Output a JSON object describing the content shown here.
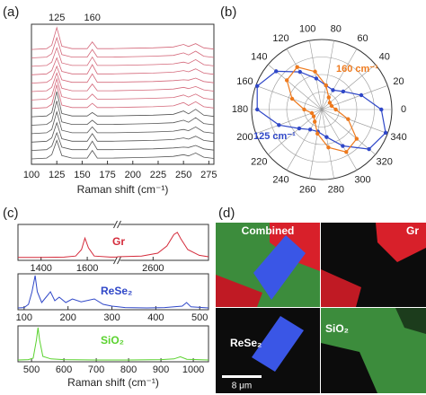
{
  "chart_data": [
    {
      "type": "spectra",
      "panel": "(a)",
      "xlabel": "Raman shift (cm⁻¹)",
      "x": [
        100,
        115,
        120,
        125,
        130,
        140,
        155,
        160,
        165,
        180,
        200,
        220,
        240,
        250,
        255,
        262,
        270,
        280
      ],
      "xlim": [
        100,
        280
      ],
      "xticks": [
        100,
        125,
        150,
        175,
        200,
        225,
        250,
        275
      ],
      "annotations": [
        {
          "text": "125",
          "x": 125
        },
        {
          "text": "160",
          "x": 160
        }
      ],
      "series": [
        {
          "color": "#d4687a",
          "values": [
            0,
            0.1,
            0.5,
            2.6,
            0.4,
            0.1,
            0.1,
            0.9,
            0.1,
            0.1,
            0.15,
            0.2,
            0.3,
            0.6,
            0.35,
            0.7,
            0.2,
            0.05
          ]
        },
        {
          "color": "#d4687a",
          "values": [
            0,
            0.1,
            0.5,
            2.4,
            0.4,
            0.1,
            0.1,
            1.0,
            0.1,
            0.1,
            0.15,
            0.2,
            0.3,
            0.6,
            0.35,
            0.8,
            0.2,
            0.05
          ]
        },
        {
          "color": "#d4687a",
          "values": [
            0,
            0.1,
            0.5,
            2.2,
            0.4,
            0.1,
            0.1,
            1.1,
            0.1,
            0.1,
            0.15,
            0.2,
            0.3,
            0.5,
            0.35,
            0.8,
            0.2,
            0.05
          ]
        },
        {
          "color": "#d4687a",
          "values": [
            0,
            0.1,
            0.5,
            2.0,
            0.4,
            0.1,
            0.1,
            1.2,
            0.1,
            0.1,
            0.15,
            0.2,
            0.3,
            0.5,
            0.35,
            0.7,
            0.2,
            0.05
          ]
        },
        {
          "color": "#d4687a",
          "values": [
            0,
            0.1,
            0.5,
            2.0,
            0.4,
            0.1,
            0.1,
            1.1,
            0.1,
            0.1,
            0.15,
            0.2,
            0.3,
            0.4,
            0.35,
            0.6,
            0.2,
            0.05
          ]
        },
        {
          "color": "#d4687a",
          "values": [
            0,
            0.1,
            0.5,
            2.2,
            0.4,
            0.1,
            0.1,
            0.9,
            0.1,
            0.1,
            0.15,
            0.2,
            0.3,
            0.5,
            0.35,
            0.6,
            0.2,
            0.05
          ]
        },
        {
          "color": "#d4687a",
          "values": [
            0,
            0.1,
            0.5,
            2.5,
            0.4,
            0.1,
            0.1,
            0.7,
            0.1,
            0.1,
            0.15,
            0.2,
            0.3,
            0.6,
            0.35,
            0.7,
            0.2,
            0.05
          ]
        },
        {
          "color": "#d4687a",
          "values": [
            0,
            0.1,
            0.5,
            2.8,
            0.4,
            0.1,
            0.1,
            0.6,
            0.1,
            0.1,
            0.15,
            0.2,
            0.3,
            0.7,
            0.35,
            0.8,
            0.2,
            0.05
          ]
        },
        {
          "color": "#555555",
          "values": [
            0,
            0.1,
            0.5,
            3.0,
            0.4,
            0.1,
            0.1,
            0.5,
            0.1,
            0.1,
            0.15,
            0.2,
            0.3,
            0.7,
            0.35,
            0.9,
            0.2,
            0.05
          ]
        },
        {
          "color": "#555555",
          "values": [
            0,
            0.1,
            0.5,
            2.9,
            0.4,
            0.1,
            0.1,
            0.6,
            0.1,
            0.1,
            0.15,
            0.2,
            0.3,
            0.6,
            0.35,
            0.9,
            0.2,
            0.05
          ]
        },
        {
          "color": "#555555",
          "values": [
            0,
            0.1,
            0.5,
            2.6,
            0.4,
            0.1,
            0.1,
            0.8,
            0.1,
            0.1,
            0.15,
            0.2,
            0.3,
            0.5,
            0.35,
            0.8,
            0.2,
            0.05
          ]
        },
        {
          "color": "#555555",
          "values": [
            0,
            0.1,
            0.5,
            2.3,
            0.4,
            0.1,
            0.1,
            1.0,
            0.1,
            0.1,
            0.15,
            0.2,
            0.3,
            0.5,
            0.35,
            0.7,
            0.2,
            0.05
          ]
        },
        {
          "color": "#555555",
          "values": [
            0,
            0.1,
            0.5,
            2.1,
            0.4,
            0.1,
            0.1,
            1.1,
            0.1,
            0.1,
            0.15,
            0.2,
            0.3,
            0.4,
            0.35,
            0.6,
            0.2,
            0.05
          ]
        },
        {
          "color": "#555555",
          "values": [
            0,
            0.1,
            0.5,
            2.2,
            0.4,
            0.1,
            0.1,
            1.0,
            0.1,
            0.1,
            0.15,
            0.2,
            0.3,
            0.5,
            0.35,
            0.7,
            0.2,
            0.05
          ]
        }
      ]
    },
    {
      "type": "polar",
      "panel": "(b)",
      "rlim": [
        0,
        1
      ],
      "theta": [
        0,
        20,
        40,
        60,
        80,
        100,
        120,
        140,
        160,
        180,
        200,
        220,
        240,
        260,
        280,
        300,
        320,
        340
      ],
      "thetaticks": [
        0,
        20,
        40,
        60,
        80,
        100,
        120,
        140,
        160,
        180,
        200,
        220,
        240,
        260,
        280,
        300,
        320,
        340
      ],
      "series": [
        {
          "name": "125 cm⁻¹",
          "color": "#2f47c8",
          "values": [
            0.85,
            0.6,
            0.4,
            0.32,
            0.35,
            0.45,
            0.62,
            0.85,
            0.98,
            0.92,
            0.65,
            0.42,
            0.33,
            0.32,
            0.4,
            0.6,
            0.88,
            0.97
          ]
        },
        {
          "name": "160 cm⁻¹",
          "color": "#ee7a1e",
          "values": [
            0.2,
            0.15,
            0.15,
            0.2,
            0.35,
            0.55,
            0.7,
            0.65,
            0.45,
            0.25,
            0.15,
            0.15,
            0.2,
            0.35,
            0.55,
            0.7,
            0.65,
            0.4
          ]
        }
      ]
    },
    {
      "type": "line",
      "panel": "(c)",
      "xlim": [
        [
          1300,
          1730
        ],
        [
          2445,
          2840
        ]
      ],
      "ylim": [
        0,
        1
      ],
      "xticks": [
        1400,
        1600,
        2600
      ],
      "x": [
        1300,
        1400,
        1500,
        1550,
        1575,
        1590,
        1605,
        1630,
        1700,
        1730,
        2445,
        2550,
        2620,
        2660,
        2690,
        2705,
        2720,
        2750,
        2800,
        2840
      ],
      "series": [
        {
          "name": "Gr",
          "color": "#d42a3a",
          "values": [
            0.08,
            0.08,
            0.09,
            0.12,
            0.3,
            0.62,
            0.35,
            0.12,
            0.09,
            0.09,
            0.1,
            0.12,
            0.2,
            0.4,
            0.72,
            0.78,
            0.6,
            0.3,
            0.14,
            0.1
          ]
        }
      ]
    },
    {
      "type": "line",
      "xlim": [
        86,
        520
      ],
      "ylim": [
        0,
        1
      ],
      "xticks": [
        100,
        200,
        300,
        400,
        500
      ],
      "x": [
        86,
        100,
        110,
        118,
        125,
        130,
        140,
        150,
        160,
        170,
        180,
        195,
        210,
        230,
        260,
        280,
        300,
        330,
        380,
        420,
        460,
        470,
        480,
        520
      ],
      "series": [
        {
          "name": "ReSe₂",
          "color": "#2f47c8",
          "values": [
            0.05,
            0.06,
            0.15,
            0.5,
            0.95,
            0.5,
            0.2,
            0.35,
            0.5,
            0.25,
            0.35,
            0.2,
            0.3,
            0.22,
            0.3,
            0.15,
            0.1,
            0.06,
            0.05,
            0.06,
            0.1,
            0.2,
            0.08,
            0.05
          ]
        }
      ]
    },
    {
      "type": "line",
      "xlabel": "Raman shift (cm⁻¹)",
      "xlim": [
        458,
        1047
      ],
      "ylim": [
        0,
        1
      ],
      "xticks": [
        500,
        600,
        700,
        800,
        900,
        1000
      ],
      "x": [
        458,
        490,
        505,
        515,
        520,
        525,
        535,
        560,
        600,
        700,
        800,
        900,
        940,
        960,
        980,
        1047
      ],
      "series": [
        {
          "name": "SiO₂",
          "color": "#5ad22e",
          "values": [
            0.05,
            0.06,
            0.1,
            0.6,
            0.95,
            0.6,
            0.15,
            0.08,
            0.06,
            0.05,
            0.05,
            0.06,
            0.08,
            0.14,
            0.07,
            0.05
          ]
        }
      ]
    }
  ],
  "image_panel": {
    "panel": "(d)",
    "tiles": [
      "Combined",
      "Gr",
      "ReSe₂",
      "SiO₂"
    ],
    "scale_bar": "8 μm"
  }
}
